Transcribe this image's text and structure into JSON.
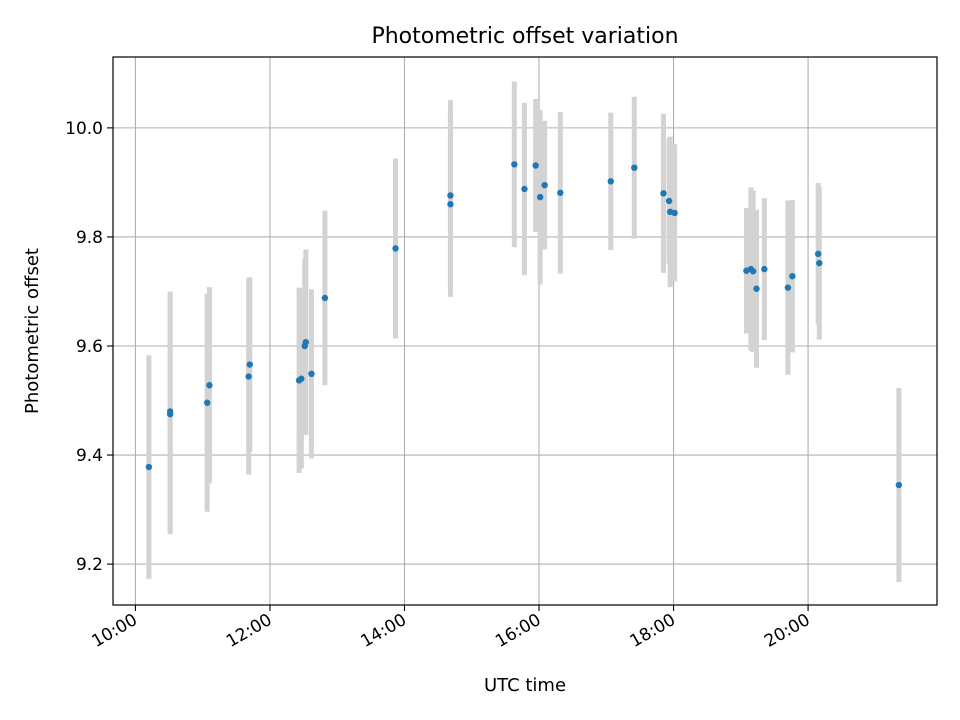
{
  "chart_data": {
    "type": "scatter",
    "title": "Photometric offset variation",
    "xlabel": "UTC time",
    "ylabel": "Photometric offset",
    "x_unit": "hours (UTC)",
    "xlim": [
      "09:40",
      "21:55"
    ],
    "ylim": [
      9.125,
      10.13
    ],
    "grid": true,
    "x_tick_labels": [
      "10:00",
      "12:00",
      "14:00",
      "16:00",
      "18:00",
      "20:00"
    ],
    "y_tick_labels": [
      "9.2",
      "9.4",
      "9.6",
      "9.8",
      "10.0"
    ],
    "colors": {
      "point": "#1f77b4",
      "errorbar": "#d3d3d3",
      "grid": "#b0b0b0"
    },
    "series": [
      {
        "points": [
          {
            "t": "10:12",
            "y": 9.378,
            "err": 0.205
          },
          {
            "t": "10:31",
            "y": 9.475,
            "err": 0.22
          },
          {
            "t": "10:31",
            "y": 9.48,
            "err": 0.22
          },
          {
            "t": "11:04",
            "y": 9.496,
            "err": 0.2
          },
          {
            "t": "11:06",
            "y": 9.528,
            "err": 0.18
          },
          {
            "t": "11:41",
            "y": 9.544,
            "err": 0.18
          },
          {
            "t": "11:42",
            "y": 9.566,
            "err": 0.16
          },
          {
            "t": "12:26",
            "y": 9.537,
            "err": 0.17
          },
          {
            "t": "12:28",
            "y": 9.54,
            "err": 0.165
          },
          {
            "t": "12:31",
            "y": 9.6,
            "err": 0.16
          },
          {
            "t": "12:32",
            "y": 9.607,
            "err": 0.17
          },
          {
            "t": "12:37",
            "y": 9.549,
            "err": 0.155
          },
          {
            "t": "12:49",
            "y": 9.688,
            "err": 0.16
          },
          {
            "t": "13:52",
            "y": 9.779,
            "err": 0.165
          },
          {
            "t": "14:41",
            "y": 9.876,
            "err": 0.175
          },
          {
            "t": "14:41",
            "y": 9.86,
            "err": 0.17
          },
          {
            "t": "15:38",
            "y": 9.933,
            "err": 0.152
          },
          {
            "t": "15:47",
            "y": 9.888,
            "err": 0.158
          },
          {
            "t": "15:57",
            "y": 9.931,
            "err": 0.122
          },
          {
            "t": "16:01",
            "y": 9.873,
            "err": 0.16
          },
          {
            "t": "16:05",
            "y": 9.895,
            "err": 0.118
          },
          {
            "t": "16:19",
            "y": 9.881,
            "err": 0.148
          },
          {
            "t": "17:04",
            "y": 9.902,
            "err": 0.126
          },
          {
            "t": "17:25",
            "y": 9.927,
            "err": 0.13
          },
          {
            "t": "17:51",
            "y": 9.88,
            "err": 0.146
          },
          {
            "t": "17:56",
            "y": 9.866,
            "err": 0.115
          },
          {
            "t": "17:57",
            "y": 9.846,
            "err": 0.138
          },
          {
            "t": "18:01",
            "y": 9.844,
            "err": 0.126
          },
          {
            "t": "19:05",
            "y": 9.738,
            "err": 0.115
          },
          {
            "t": "19:09",
            "y": 9.741,
            "err": 0.15
          },
          {
            "t": "19:11",
            "y": 9.737,
            "err": 0.148
          },
          {
            "t": "19:14",
            "y": 9.705,
            "err": 0.145
          },
          {
            "t": "19:21",
            "y": 9.741,
            "err": 0.13
          },
          {
            "t": "19:42",
            "y": 9.707,
            "err": 0.16
          },
          {
            "t": "19:46",
            "y": 9.728,
            "err": 0.14
          },
          {
            "t": "20:09",
            "y": 9.769,
            "err": 0.13
          },
          {
            "t": "20:10",
            "y": 9.752,
            "err": 0.14
          },
          {
            "t": "21:21",
            "y": 9.345,
            "err": 0.178
          }
        ]
      }
    ]
  }
}
